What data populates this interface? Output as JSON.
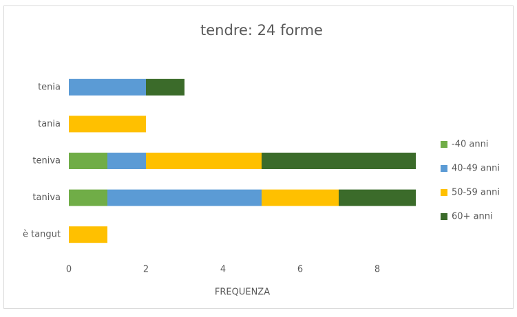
{
  "chart_data": {
    "type": "stacked_barh",
    "title": "tendre: 24 forme",
    "categories": [
      "tenia",
      "tania",
      "teniva",
      "taniva",
      "è tangut"
    ],
    "series": [
      {
        "name": "-40 anni",
        "color": "#70ad47",
        "values": [
          0,
          0,
          1,
          1,
          0
        ]
      },
      {
        "name": "40-49 anni",
        "color": "#5b9bd5",
        "values": [
          2,
          0,
          1,
          4,
          0
        ]
      },
      {
        "name": "50-59 anni",
        "color": "#ffc000",
        "values": [
          0,
          2,
          3,
          2,
          1
        ]
      },
      {
        "name": "60+ anni",
        "color": "#3b6b2a",
        "values": [
          1,
          0,
          4,
          2,
          0
        ]
      }
    ],
    "x_label": "FREQUENZA",
    "xlim": [
      0,
      9
    ],
    "xticks": [
      0,
      2,
      4,
      6,
      8
    ],
    "grid": false,
    "legend": "right"
  }
}
